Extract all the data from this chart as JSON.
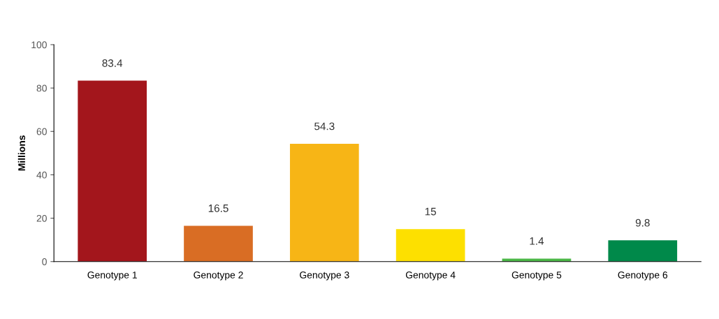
{
  "chart_data": {
    "type": "bar",
    "ylabel": "Millions",
    "categories": [
      "Genotype 1",
      "Genotype 2",
      "Genotype 3",
      "Genotype 4",
      "Genotype 5",
      "Genotype 6"
    ],
    "values": [
      83.4,
      16.5,
      54.3,
      15,
      1.4,
      9.8
    ],
    "colors": [
      "#a3161c",
      "#d96d24",
      "#f7b516",
      "#fde000",
      "#4cb848",
      "#00894a"
    ],
    "ylim": [
      0,
      100
    ],
    "yticks": [
      0,
      20,
      40,
      60,
      80,
      100
    ],
    "data_labels": true,
    "grid": false
  }
}
